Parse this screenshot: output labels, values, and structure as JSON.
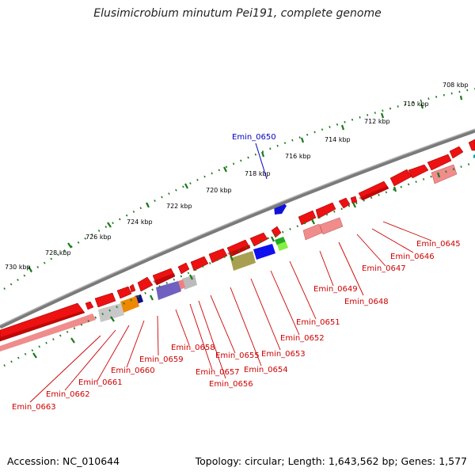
{
  "title": "Elusimicrobium minutum Pei191, complete genome",
  "footer": {
    "accession": "Accession: NC_010644",
    "summary": "Topology: circular; Length: 1,643,562 bp; Genes: 1,577"
  },
  "scale_labels": [
    "708 kbp",
    "710 kbp",
    "712 kbp",
    "714 kbp",
    "716 kbp",
    "718 kbp",
    "720 kbp",
    "722 kbp",
    "724 kbp",
    "726 kbp",
    "728 kbp",
    "730 kbp"
  ],
  "highlight_gene": "Emin_0650",
  "gene_labels": [
    "Emin_0645",
    "Emin_0646",
    "Emin_0647",
    "Emin_0648",
    "Emin_0649",
    "Emin_0651",
    "Emin_0652",
    "Emin_0653",
    "Emin_0654",
    "Emin_0655",
    "Emin_0656",
    "Emin_0657",
    "Emin_0658",
    "Emin_0659",
    "Emin_0660",
    "Emin_0661",
    "Emin_0662",
    "Emin_0663"
  ],
  "colors": {
    "cds": "#ee1111",
    "cds_light": "#f08c8c",
    "rna": "#0000dd",
    "genome_line": "#808080",
    "ticks": "#1b7a1b",
    "label_red": "#cc0000",
    "label_blue": "#0000bb"
  }
}
